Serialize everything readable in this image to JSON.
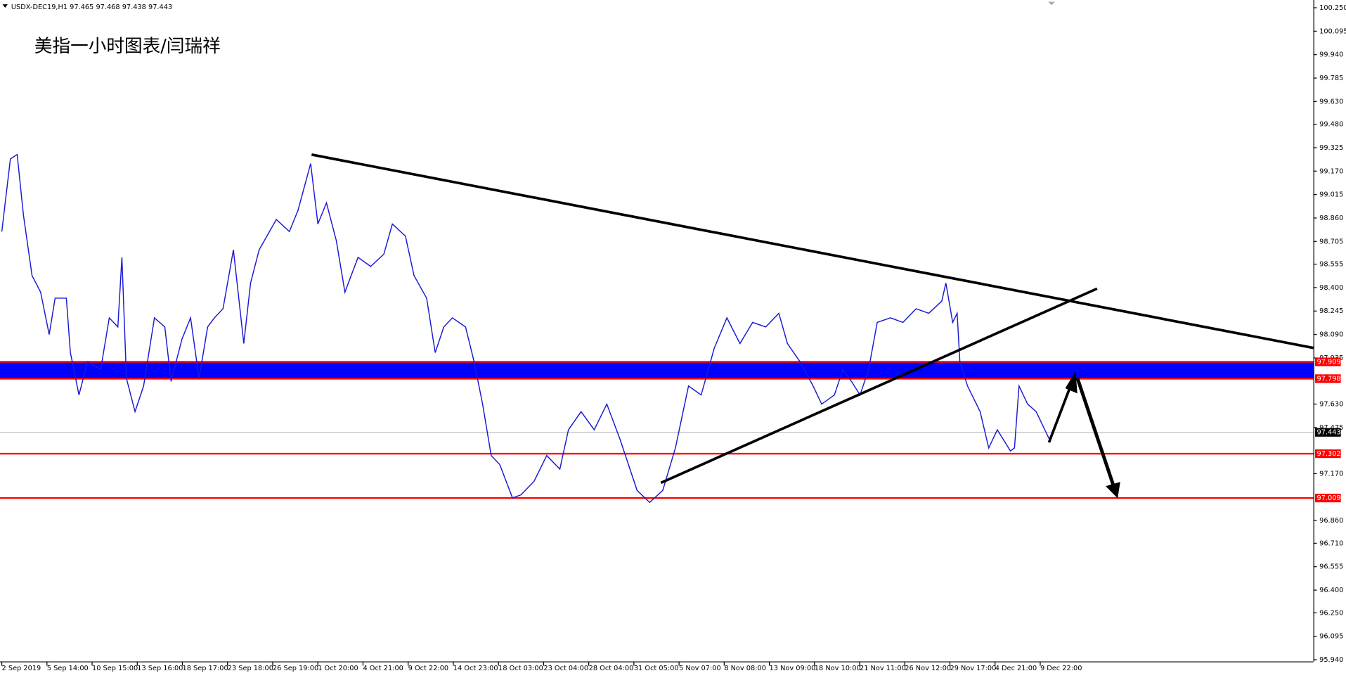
{
  "chart_data": {
    "type": "line",
    "header": "USDX-DEC19,H1  97.465 97.468 97.438 97.443",
    "title": "美指一小时图表/闫瑞祥",
    "xlim": [
      -0.04,
      29.05
    ],
    "xticks": [
      {
        "value": 0,
        "label": "2 Sep 2019"
      },
      {
        "value": 1,
        "label": "5 Sep 14:00"
      },
      {
        "value": 2,
        "label": "10 Sep 15:00"
      },
      {
        "value": 3,
        "label": "13 Sep 16:00"
      },
      {
        "value": 4,
        "label": "18 Sep 17:00"
      },
      {
        "value": 5,
        "label": "23 Sep 18:00"
      },
      {
        "value": 6,
        "label": "26 Sep 19:00"
      },
      {
        "value": 7,
        "label": "1 Oct 20:00"
      },
      {
        "value": 8,
        "label": "4 Oct 21:00"
      },
      {
        "value": 9,
        "label": "9 Oct 22:00"
      },
      {
        "value": 10,
        "label": "14 Oct 23:00"
      },
      {
        "value": 11,
        "label": "18 Oct 03:00"
      },
      {
        "value": 12,
        "label": "23 Oct 04:00"
      },
      {
        "value": 13,
        "label": "28 Oct 04:00"
      },
      {
        "value": 14,
        "label": "31 Oct 05:00"
      },
      {
        "value": 15,
        "label": "5 Nov 07:00"
      },
      {
        "value": 16,
        "label": "8 Nov 08:00"
      },
      {
        "value": 17,
        "label": "13 Nov 09:00"
      },
      {
        "value": 18,
        "label": "18 Nov 10:00"
      },
      {
        "value": 19,
        "label": "21 Nov 11:00"
      },
      {
        "value": 20,
        "label": "26 Nov 12:00"
      },
      {
        "value": 21,
        "label": "29 Nov 17:00"
      },
      {
        "value": 22,
        "label": "4 Dec 21:00"
      },
      {
        "value": 23,
        "label": "9 Dec 22:00"
      }
    ],
    "ylim": [
      95.94,
      100.25
    ],
    "yticks": [
      {
        "value": 100.25,
        "label": "100.250"
      },
      {
        "value": 100.095,
        "label": "100.095"
      },
      {
        "value": 99.94,
        "label": "99.940"
      },
      99.785,
      {
        "value": 99.63,
        "label": "99.630"
      },
      {
        "value": 99.48,
        "label": "99.480"
      },
      99.325,
      {
        "value": 99.17,
        "label": "99.170"
      },
      99.015,
      {
        "value": 98.86,
        "label": "98.860"
      },
      98.705,
      98.555,
      {
        "value": 98.4,
        "label": "98.400"
      },
      98.245,
      {
        "value": 98.09,
        "label": "98.090"
      },
      97.935,
      {
        "value": 97.63,
        "label": "97.630"
      },
      97.475,
      {
        "value": 97.17,
        "label": "97.170"
      },
      {
        "value": 96.86,
        "label": "96.860"
      },
      {
        "value": 96.71,
        "label": "96.710"
      },
      96.555,
      {
        "value": 96.4,
        "label": "96.400"
      },
      {
        "value": 96.25,
        "label": "96.250"
      },
      96.095,
      {
        "value": 95.94,
        "label": "95.940"
      }
    ],
    "x": [
      0,
      0.19,
      0.34,
      0.48,
      0.67,
      0.86,
      1.05,
      1.18,
      1.43,
      1.52,
      1.71,
      1.9,
      2.19,
      2.38,
      2.57,
      2.66,
      2.76,
      2.95,
      3.14,
      3.38,
      3.61,
      3.75,
      3.99,
      4.18,
      4.37,
      4.56,
      4.71,
      4.9,
      5.13,
      5.36,
      5.51,
      5.7,
      6.08,
      6.37,
      6.56,
      6.84,
      7,
      7.19,
      7.41,
      7.6,
      7.89,
      8.17,
      8.46,
      8.65,
      8.94,
      9.13,
      9.41,
      9.6,
      9.79,
      9.98,
      10.27,
      10.46,
      10.65,
      10.84,
      11.03,
      11.31,
      11.5,
      11.79,
      12.07,
      12.36,
      12.55,
      12.83,
      13.12,
      13.4,
      13.69,
      13.88,
      14.07,
      14.35,
      14.64,
      14.92,
      15.21,
      15.49,
      15.78,
      16.06,
      16.35,
      16.63,
      16.92,
      17.21,
      17.4,
      17.68,
      17.97,
      18.16,
      18.44,
      18.63,
      18.82,
      19.01,
      19.2,
      19.39,
      19.68,
      19.96,
      20.25,
      20.53,
      20.82,
      20.91,
      21.06,
      21.16,
      21.22,
      21.39,
      21.67,
      21.86,
      22.05,
      22.34,
      22.43,
      22.53,
      22.72,
      22.91,
      23.1,
      23.23
    ],
    "series": [
      {
        "color": "#1a1ad6",
        "values": [
          98.77,
          99.25,
          99.28,
          98.88,
          98.48,
          98.37,
          98.09,
          98.33,
          98.33,
          97.97,
          97.69,
          97.91,
          97.86,
          98.2,
          98.14,
          98.6,
          97.8,
          97.58,
          97.75,
          98.2,
          98.14,
          97.78,
          98.06,
          98.2,
          97.8,
          98.14,
          98.2,
          98.26,
          98.65,
          98.03,
          98.43,
          98.65,
          98.85,
          98.77,
          98.91,
          99.22,
          98.82,
          98.96,
          98.71,
          98.37,
          98.6,
          98.54,
          98.62,
          98.82,
          98.74,
          98.48,
          98.33,
          97.97,
          98.14,
          98.2,
          98.14,
          97.91,
          97.63,
          97.29,
          97.23,
          97.01,
          97.03,
          97.12,
          97.29,
          97.2,
          97.46,
          97.58,
          97.46,
          97.63,
          97.4,
          97.23,
          97.06,
          96.98,
          97.06,
          97.34,
          97.75,
          97.69,
          98,
          98.2,
          98.03,
          98.17,
          98.14,
          98.23,
          98.03,
          97.91,
          97.75,
          97.63,
          97.69,
          97.86,
          97.78,
          97.69,
          97.86,
          98.17,
          98.2,
          98.17,
          98.26,
          98.23,
          98.31,
          98.43,
          98.17,
          98.23,
          97.91,
          97.75,
          97.58,
          97.34,
          97.46,
          97.32,
          97.34,
          97.75,
          97.63,
          97.58,
          97.46,
          97.38
        ]
      }
    ],
    "zone": {
      "color": "#0000ff",
      "values": [
        97.909,
        97.798
      ]
    },
    "levels": {
      "color": "#ff0000",
      "values": [
        97.909,
        97.798,
        97.302,
        97.009
      ]
    },
    "current": {
      "color": "#c0c0c0",
      "value": 97.443
    }
  }
}
